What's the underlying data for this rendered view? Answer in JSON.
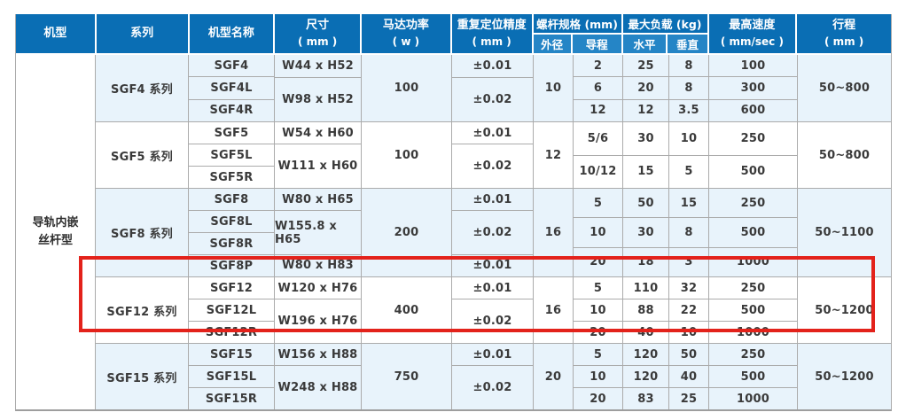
{
  "colors": {
    "header-blue": "#0a6eb4",
    "subheader-blue": "#2585c6",
    "row-light": "#e8f3fb",
    "row-white": "#ffffff",
    "grid": "#ababab",
    "highlight-red": "#e3221b",
    "text-dark": "#3a3a3a",
    "header-text": "#ffffff"
  },
  "header": {
    "machine_type": "机型",
    "series": "系列",
    "model_name": "机型名称",
    "size_label": "尺寸",
    "size_unit": "( mm )",
    "motor_power_label": "马达功率",
    "motor_power_unit": "( w )",
    "accuracy_label": "重复定位精度",
    "accuracy_unit": "( mm )",
    "screw_spec_label": "螺杆规格 (mm)",
    "outer_dia": "外径",
    "lead": "导程",
    "max_load_label": "最大负载 (kg)",
    "horizontal": "水平",
    "vertical": "垂直",
    "max_speed_label": "最高速度",
    "max_speed_unit": "( mm/sec )",
    "stroke_label": "行程",
    "stroke_unit": "( mm )"
  },
  "machine_type": {
    "line1": "导轨内嵌",
    "line2": "丝杆型"
  },
  "blocks": [
    {
      "series": "SGF4 系列",
      "models": [
        "SGF4",
        "SGF4L",
        "SGF4R"
      ],
      "dims": [
        "W44 x H52",
        "W98 x H52"
      ],
      "power": "100",
      "accuracy": [
        "±0.01",
        "±0.02"
      ],
      "outer_dia": "10",
      "leads": [
        "2",
        "6",
        "12"
      ],
      "load_horizontal": [
        "25",
        "20",
        "12"
      ],
      "load_vertical": [
        "8",
        "8",
        "3.5"
      ],
      "speeds": [
        "100",
        "300",
        "600"
      ],
      "stroke": "50~800"
    },
    {
      "series": "SGF5 系列",
      "models": [
        "SGF5",
        "SGF5L",
        "SGF5R"
      ],
      "dims": [
        "W54 x H60",
        "W111 x H60"
      ],
      "power": "100",
      "accuracy": [
        "±0.01",
        "±0.02"
      ],
      "outer_dia": "12",
      "leads": [
        "5/6",
        "10/12"
      ],
      "load_horizontal": [
        "30",
        "15"
      ],
      "load_vertical": [
        "10",
        "5"
      ],
      "speeds": [
        "250",
        "500"
      ],
      "stroke": "50~800"
    },
    {
      "series": "SGF8 系列",
      "models": [
        "SGF8",
        "SGF8L",
        "SGF8R",
        "SGF8P"
      ],
      "dims": [
        "W80 x H65",
        "W155.8 x H65",
        "W80 x H83"
      ],
      "power": "200",
      "accuracy": [
        "±0.01",
        "±0.02",
        "±0.01"
      ],
      "outer_dia": "16",
      "leads": [
        "5",
        "10",
        "20"
      ],
      "load_horizontal": [
        "50",
        "30",
        "18"
      ],
      "load_vertical": [
        "15",
        "8",
        "3"
      ],
      "speeds": [
        "250",
        "500",
        "1000"
      ],
      "stroke": "50~1100"
    },
    {
      "series": "SGF12 系列",
      "models": [
        "SGF12",
        "SGF12L",
        "SGF12R"
      ],
      "dims": [
        "W120 x H76",
        "W196 x H76"
      ],
      "power": "400",
      "accuracy": [
        "±0.01",
        "±0.02"
      ],
      "outer_dia": "16",
      "leads": [
        "5",
        "10",
        "20"
      ],
      "load_horizontal": [
        "110",
        "88",
        "40"
      ],
      "load_vertical": [
        "32",
        "22",
        "10"
      ],
      "speeds": [
        "250",
        "500",
        "1000"
      ],
      "stroke": "50~1200"
    },
    {
      "series": "SGF15 系列",
      "models": [
        "SGF15",
        "SGF15L",
        "SGF15R"
      ],
      "dims": [
        "W156 x H88",
        "W248 x H88"
      ],
      "power": "750",
      "accuracy": [
        "±0.01",
        "±0.02"
      ],
      "outer_dia": "20",
      "leads": [
        "5",
        "10",
        "20"
      ],
      "load_horizontal": [
        "120",
        "120",
        "83"
      ],
      "load_vertical": [
        "50",
        "40",
        "25"
      ],
      "speeds": [
        "250",
        "500",
        "1000"
      ],
      "stroke": "50~1200"
    }
  ]
}
